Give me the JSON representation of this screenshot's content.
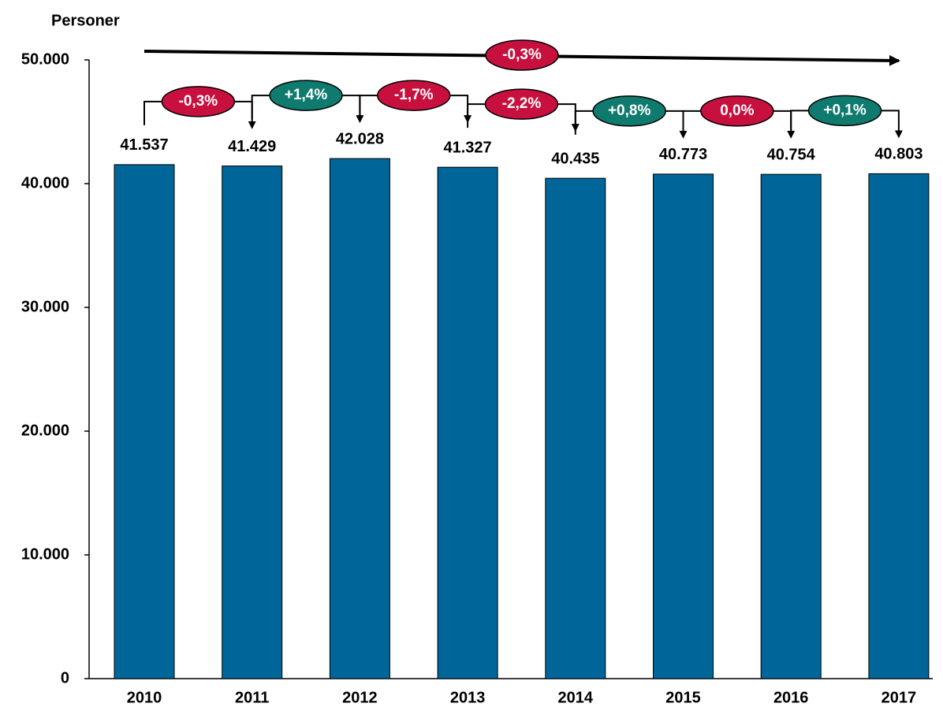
{
  "chart_data": {
    "type": "bar",
    "y_axis_label": "Personer",
    "categories": [
      "2010",
      "2011",
      "2012",
      "2013",
      "2014",
      "2015",
      "2016",
      "2017"
    ],
    "values": [
      41537,
      41429,
      42028,
      41327,
      40435,
      40773,
      40754,
      40803
    ],
    "value_labels": [
      "41.537",
      "41.429",
      "42.028",
      "41.327",
      "40.435",
      "40.773",
      "40.754",
      "40.803"
    ],
    "color": "#006699",
    "ylim": [
      0,
      50000
    ],
    "yticks": [
      0,
      {
        "value": 10000,
        "label": "10.000"
      },
      {
        "value": 20000,
        "label": "20.000"
      },
      {
        "value": 30000,
        "label": "30.000"
      },
      {
        "value": 40000,
        "label": "40.000"
      },
      {
        "value": 50000,
        "label": "50.000"
      }
    ],
    "changes": [
      {
        "label": "-0,3%",
        "color": "#c8103e"
      },
      {
        "label": "+1,4%",
        "color": "#0f7a6e"
      },
      {
        "label": "-1,7%",
        "color": "#c8103e"
      },
      {
        "label": "-2,2%",
        "color": "#c8103e"
      },
      {
        "label": "+0,8%",
        "color": "#0f7a6e"
      },
      {
        "label": "0,0%",
        "color": "#c8103e"
      },
      {
        "label": "+0,1%",
        "color": "#0f7a6e"
      }
    ],
    "overall_change": {
      "label": "-0,3%",
      "color": "#c8103e"
    }
  }
}
